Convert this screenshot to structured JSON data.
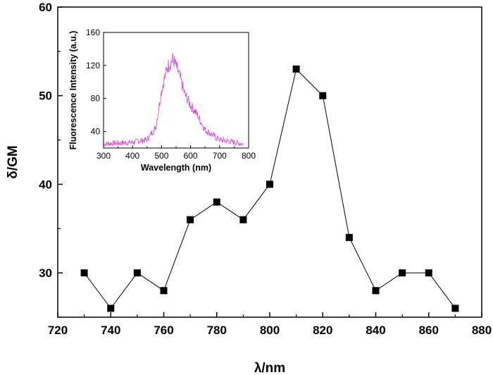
{
  "chart_data": [
    {
      "type": "line",
      "markers": "square",
      "x": [
        730,
        740,
        750,
        760,
        770,
        780,
        790,
        800,
        810,
        820,
        830,
        840,
        850,
        860,
        870
      ],
      "y": [
        30,
        26,
        30,
        28,
        36,
        38,
        36,
        40,
        53,
        50,
        34,
        28,
        30,
        30,
        26
      ],
      "xlabel": "λ/nm",
      "ylabel": "δ/GM",
      "xlim": [
        720,
        880
      ],
      "ylim": [
        25,
        60
      ],
      "xticks": [
        "720",
        "740",
        "760",
        "780",
        "800",
        "820",
        "840",
        "860",
        "880"
      ],
      "yticks": [
        "30",
        "40",
        "50",
        "60"
      ],
      "grid": false,
      "line_color": "#000000",
      "marker_color": "#000000"
    },
    {
      "type": "line",
      "role": "inset",
      "x": [
        300,
        350,
        400,
        450,
        480,
        500,
        520,
        540,
        560,
        580,
        600,
        620,
        650,
        700,
        750,
        780
      ],
      "y": [
        25,
        26,
        27,
        30,
        45,
        90,
        118,
        128,
        110,
        85,
        72,
        62,
        42,
        30,
        27,
        25
      ],
      "xlabel": "Wavelength (nm)",
      "ylabel": "Fluorescence Intensity (a.u.)",
      "xlim": [
        300,
        800
      ],
      "ylim": [
        20,
        160
      ],
      "xticks": [
        "300",
        "400",
        "500",
        "600",
        "700",
        "800"
      ],
      "yticks": [
        "40",
        "80",
        "120",
        "160"
      ],
      "grid": false,
      "line_color": "#e040e0"
    }
  ]
}
